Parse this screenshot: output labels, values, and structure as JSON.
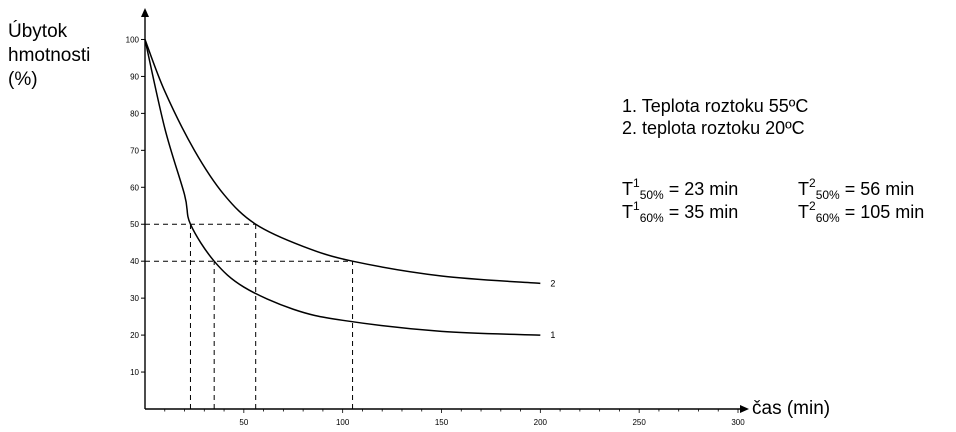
{
  "chart_data": {
    "type": "line",
    "title": "",
    "xlabel": "čas (min)",
    "ylabel_lines": [
      "Úbytok",
      "hmotnosti",
      "(%)"
    ],
    "xlim": [
      0,
      300
    ],
    "ylim": [
      0,
      105
    ],
    "xticks": [
      50,
      100,
      150,
      200,
      250,
      300
    ],
    "yticks": [
      10,
      20,
      30,
      40,
      50,
      60,
      70,
      80,
      90,
      100
    ],
    "grid": false,
    "series": [
      {
        "name": "1",
        "x": [
          0,
          10,
          20,
          23,
          35,
          50,
          75,
          100,
          150,
          200
        ],
        "y": [
          100,
          76,
          58,
          50,
          40,
          33,
          27,
          24,
          21,
          20
        ]
      },
      {
        "name": "2",
        "x": [
          0,
          10,
          25,
          40,
          56,
          80,
          105,
          150,
          200
        ],
        "y": [
          100,
          86,
          70,
          58,
          50,
          44,
          40,
          36,
          34
        ]
      }
    ],
    "reference_lines": [
      {
        "y": 50,
        "x_from": 0,
        "x_to": 56
      },
      {
        "y": 40,
        "x_from": 0,
        "x_to": 105
      },
      {
        "x": 23,
        "y_from": 0,
        "y_to": 50
      },
      {
        "x": 35,
        "y_from": 0,
        "y_to": 40
      },
      {
        "x": 56,
        "y_from": 0,
        "y_to": 50
      },
      {
        "x": 105,
        "y_from": 0,
        "y_to": 40
      }
    ]
  },
  "legend": {
    "item1": "1. Teplota roztoku 55ºC",
    "item2": "2. teplota roztoku 20ºC"
  },
  "annotations": [
    {
      "T": "T",
      "sup": "1",
      "sub": "50%",
      "rest": " = 23 min"
    },
    {
      "T": "T",
      "sup": "2",
      "sub": "50%",
      "rest": " =  56 min"
    },
    {
      "T": "T",
      "sup": "1",
      "sub": "60%",
      "rest": " = 35 min"
    },
    {
      "T": "T",
      "sup": "2",
      "sub": "60%",
      "rest": " = 105 min"
    }
  ]
}
